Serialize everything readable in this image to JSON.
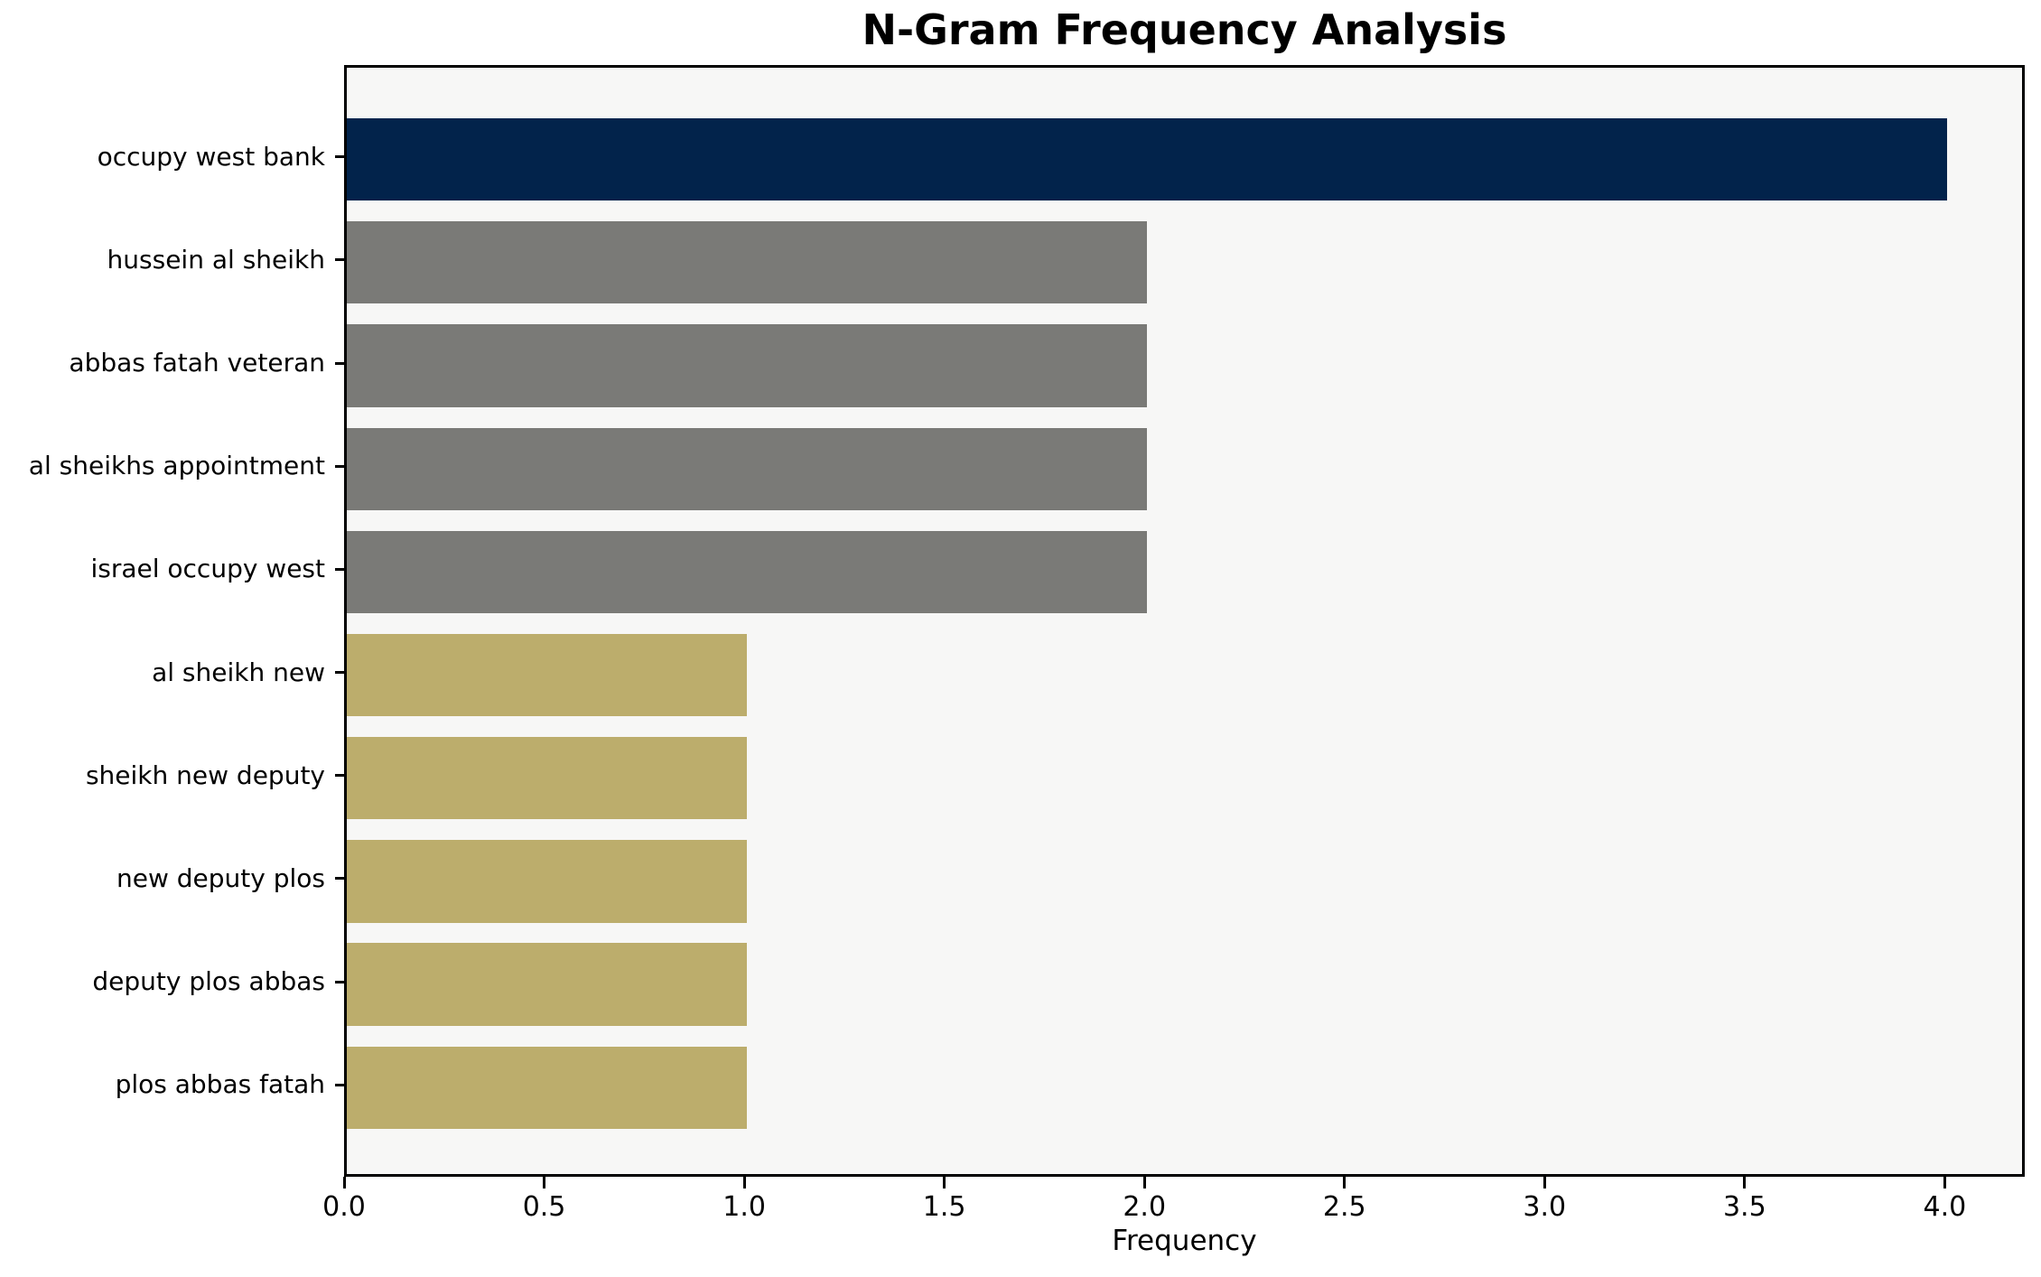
{
  "chart_data": {
    "type": "bar",
    "orientation": "horizontal",
    "title": "N-Gram Frequency Analysis",
    "xlabel": "Frequency",
    "ylabel": "",
    "categories": [
      "occupy west bank",
      "hussein al sheikh",
      "abbas fatah veteran",
      "al sheikhs appointment",
      "israel occupy west",
      "al sheikh new",
      "sheikh new deputy",
      "new deputy plos",
      "deputy plos abbas",
      "plos abbas fatah"
    ],
    "values": [
      4,
      2,
      2,
      2,
      2,
      1,
      1,
      1,
      1,
      1
    ],
    "bar_colors": [
      "#02234b",
      "#7a7a77",
      "#7a7a77",
      "#7a7a77",
      "#7a7a77",
      "#bcad6c",
      "#bcad6c",
      "#bcad6c",
      "#bcad6c",
      "#bcad6c"
    ],
    "xlim": [
      0,
      4.2
    ],
    "xticks": [
      0,
      0.5,
      1,
      1.5,
      2,
      2.5,
      3,
      3.5,
      4
    ],
    "xtick_labels": [
      "0.0",
      "0.5",
      "1.0",
      "1.5",
      "2.0",
      "2.5",
      "3.0",
      "3.5",
      "4.0"
    ],
    "grid": false,
    "legend": null,
    "colors": {
      "plot_background": "#f7f7f6",
      "figure_background": "#ffffff",
      "spine": "#000000",
      "text": "#000000",
      "highlight_bar": "#02234b",
      "mid_bar": "#7a7a77",
      "low_bar": "#bcad6c"
    }
  }
}
